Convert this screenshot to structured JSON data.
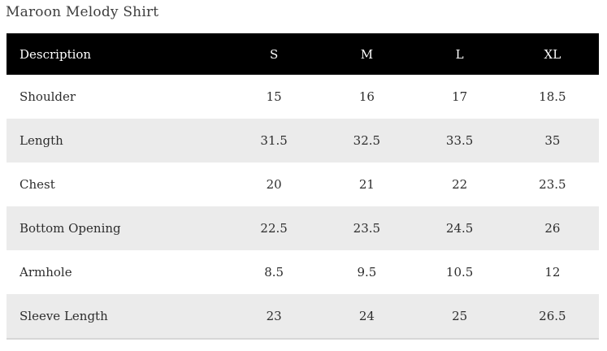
{
  "page_title": "Maroon Melody Shirt",
  "size_chart": {
    "columns": [
      "Description",
      "S",
      "M",
      "L",
      "XL"
    ],
    "rows": [
      {
        "label": "Shoulder",
        "values": [
          "15",
          "16",
          "17",
          "18.5"
        ]
      },
      {
        "label": "Length",
        "values": [
          "31.5",
          "32.5",
          "33.5",
          "35"
        ]
      },
      {
        "label": "Chest",
        "values": [
          "20",
          "21",
          "22",
          "23.5"
        ]
      },
      {
        "label": "Bottom Opening",
        "values": [
          "22.5",
          "23.5",
          "24.5",
          "26"
        ]
      },
      {
        "label": "Armhole",
        "values": [
          "8.5",
          "9.5",
          "10.5",
          "12"
        ]
      },
      {
        "label": "Sleeve Length",
        "values": [
          "23",
          "24",
          "25",
          "26.5"
        ]
      }
    ]
  },
  "colors": {
    "header_bg": "#000000",
    "header_text": "#ffffff",
    "row_alt_bg": "#ebebeb",
    "table_bottom_border": "#d6d6d6",
    "body_text": "#2d2d2d",
    "title_text": "#3e3e3e"
  }
}
